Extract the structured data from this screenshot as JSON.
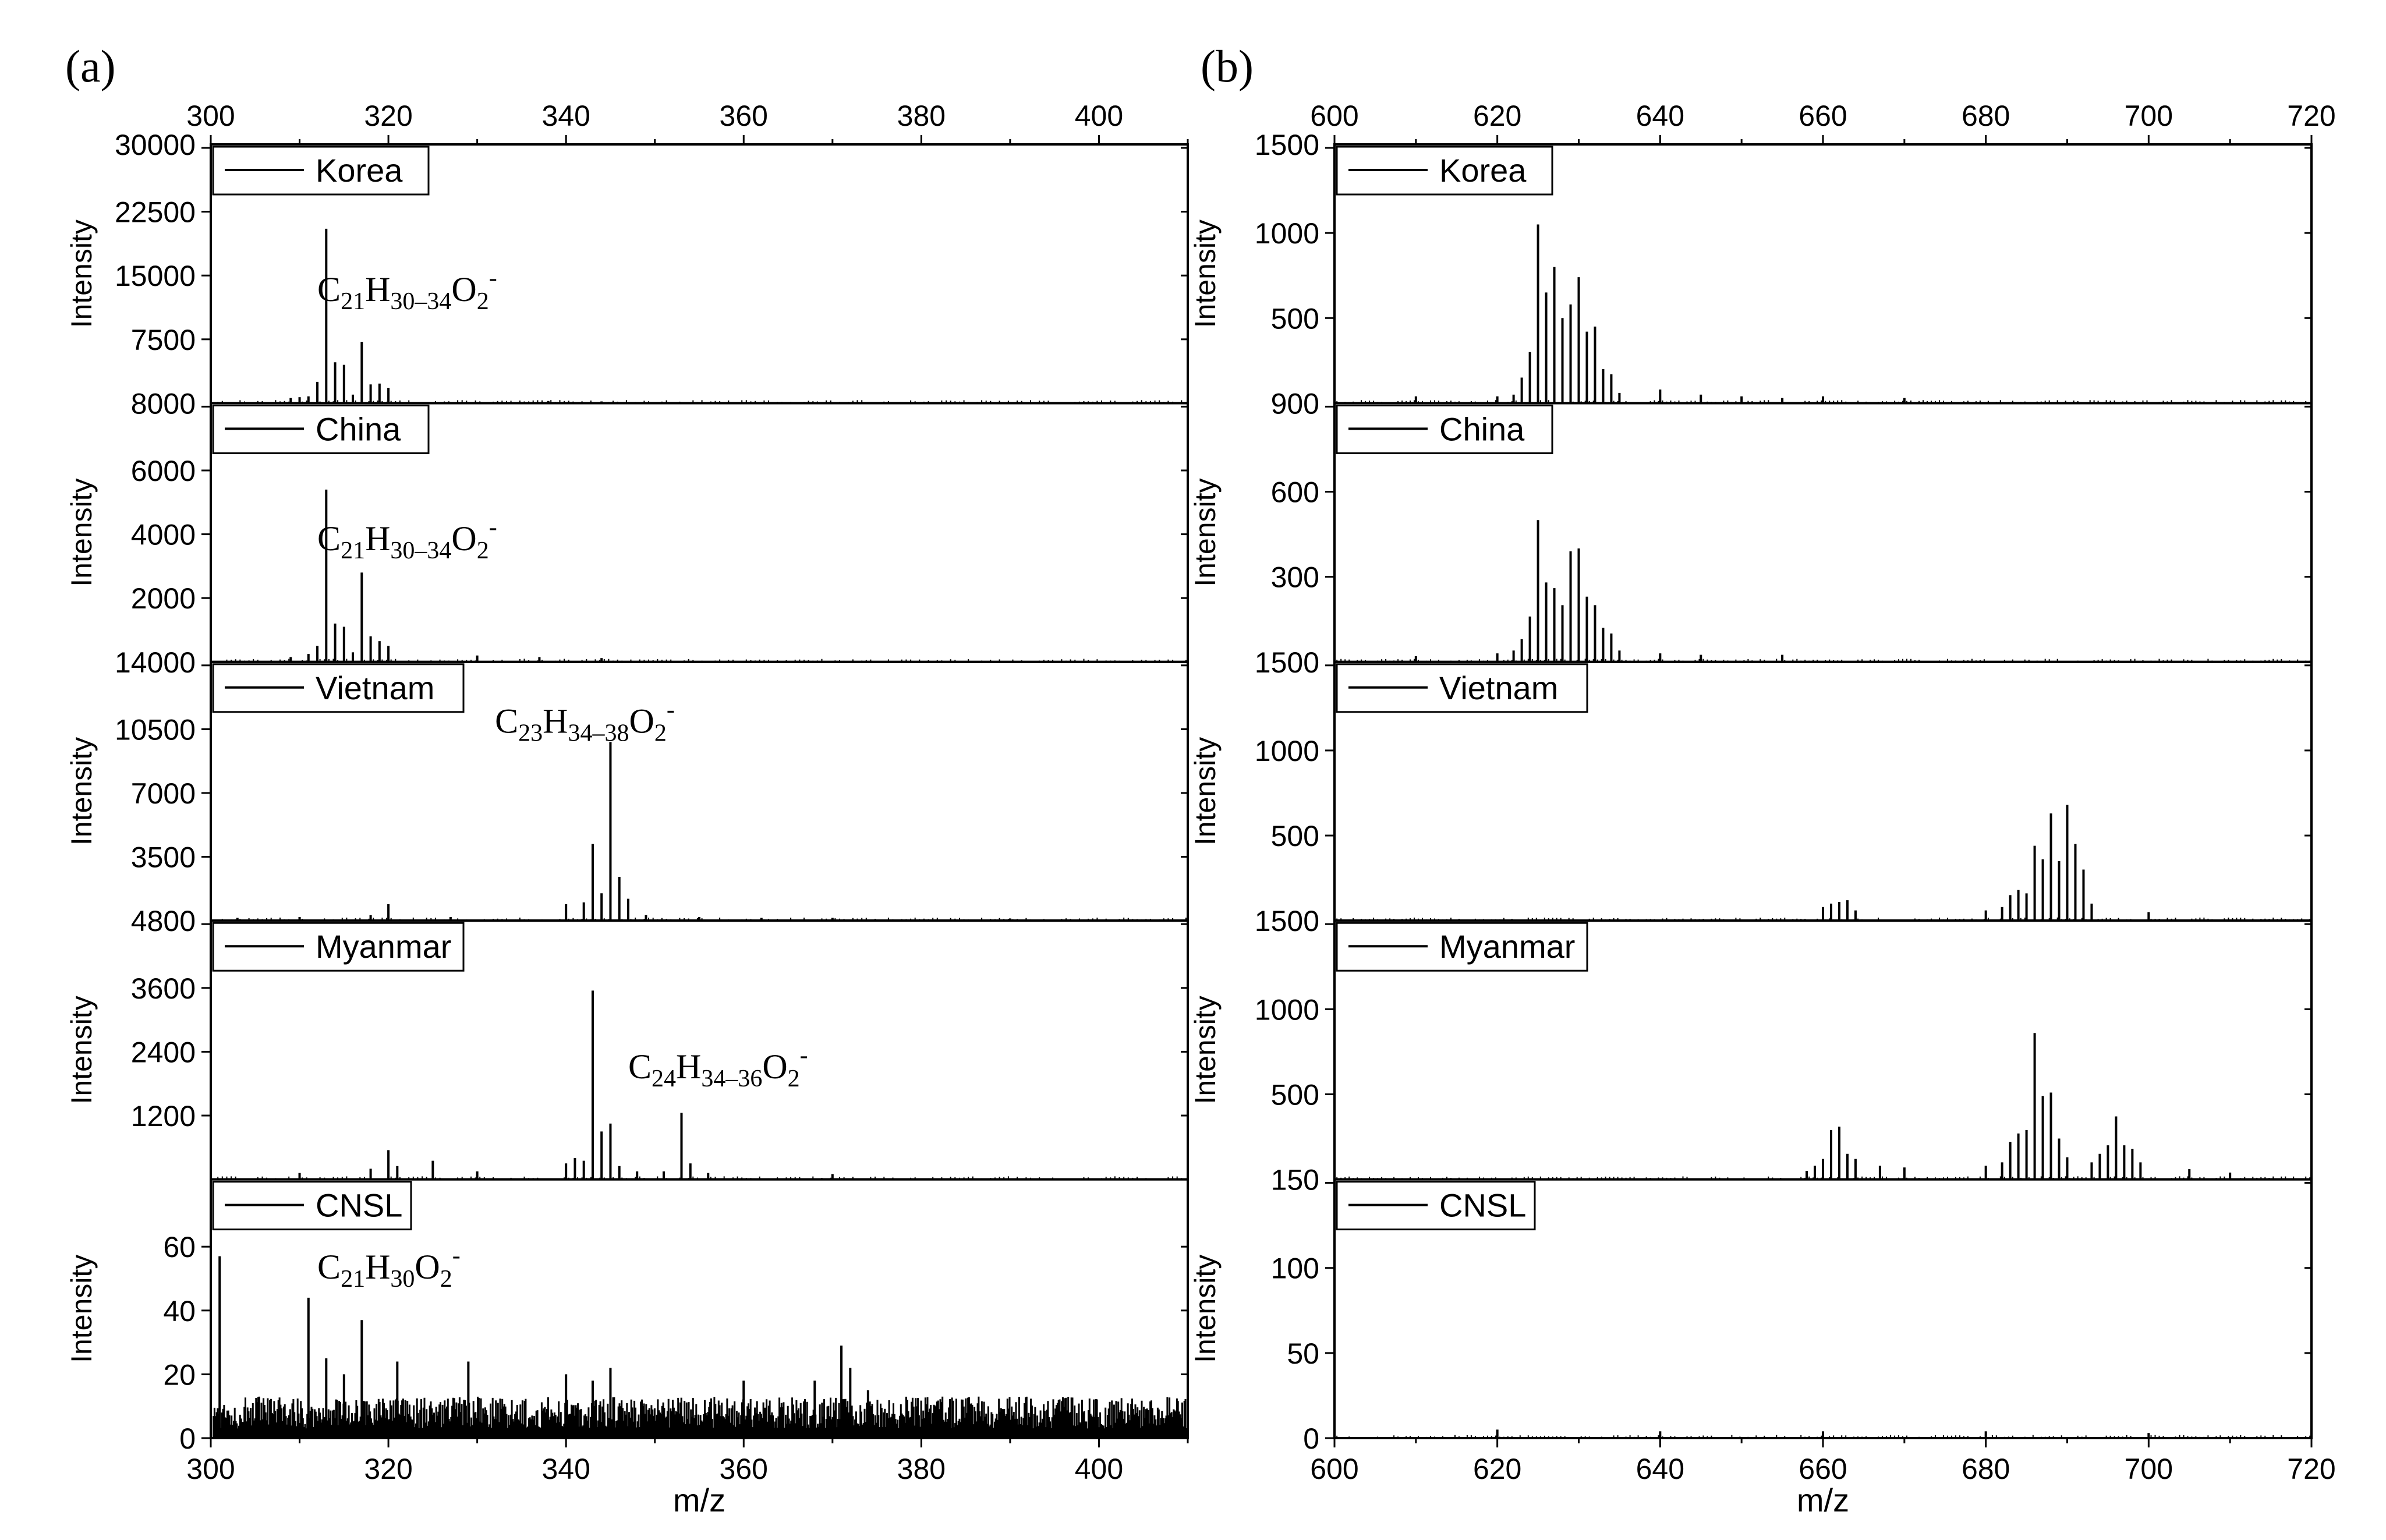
{
  "figure_labels": [
    "(a)",
    "(b)"
  ],
  "common_xlabel": "m/z",
  "chart_data": [
    {
      "type": "line",
      "panel": "(a)",
      "xlabel": "m/z",
      "xlim": [
        300,
        410
      ],
      "xticks": [
        300,
        320,
        340,
        360,
        380,
        400
      ],
      "series": [
        {
          "name": "Korea",
          "ylabel": "Intensity",
          "ylim": [
            0,
            30000
          ],
          "yticks": [
            "7500",
            "15000",
            "22500",
            "30000"
          ],
          "annotation": {
            "formula": [
              "C",
              "21",
              "H",
              "30–34",
              "O",
              "2",
              "-"
            ],
            "x": 312,
            "y": 12000
          },
          "peaks": [
            [
              309,
              600
            ],
            [
              310,
              700
            ],
            [
              311,
              800
            ],
            [
              312,
              2500
            ],
            [
              313,
              20500
            ],
            [
              314,
              4800
            ],
            [
              315,
              4500
            ],
            [
              316,
              1000
            ],
            [
              317,
              7200
            ],
            [
              318,
              2200
            ],
            [
              319,
              2300
            ],
            [
              320,
              1800
            ],
            [
              338,
              250
            ],
            [
              344,
              200
            ]
          ]
        },
        {
          "name": "China",
          "ylabel": "Intensity",
          "ylim": [
            0,
            8000
          ],
          "yticks": [
            "2000",
            "4000",
            "6000",
            "8000"
          ],
          "annotation": {
            "formula": [
              "C",
              "21",
              "H",
              "30–34",
              "O",
              "2",
              "-"
            ],
            "x": 312,
            "y": 3500
          },
          "peaks": [
            [
              309,
              150
            ],
            [
              311,
              250
            ],
            [
              312,
              500
            ],
            [
              313,
              5400
            ],
            [
              314,
              1200
            ],
            [
              315,
              1100
            ],
            [
              316,
              300
            ],
            [
              317,
              2800
            ],
            [
              318,
              800
            ],
            [
              319,
              650
            ],
            [
              320,
              500
            ],
            [
              330,
              200
            ],
            [
              337,
              150
            ],
            [
              344,
              120
            ]
          ]
        },
        {
          "name": "Vietnam",
          "ylabel": "Intensity",
          "ylim": [
            0,
            14000
          ],
          "yticks": [
            "3500",
            "7000",
            "10500",
            "14000"
          ],
          "annotation": {
            "formula": [
              "C",
              "23",
              "H",
              "34–38",
              "O",
              "2",
              "-"
            ],
            "x": 332,
            "y": 10300
          },
          "peaks": [
            [
              303,
              150
            ],
            [
              310,
              200
            ],
            [
              318,
              300
            ],
            [
              320,
              900
            ],
            [
              327,
              200
            ],
            [
              340,
              900
            ],
            [
              342,
              1000
            ],
            [
              343,
              4200
            ],
            [
              344,
              1500
            ],
            [
              345,
              9800
            ],
            [
              346,
              2400
            ],
            [
              347,
              1200
            ],
            [
              349,
              300
            ],
            [
              355,
              200
            ],
            [
              362,
              150
            ],
            [
              370,
              150
            ],
            [
              390,
              120
            ]
          ]
        },
        {
          "name": "Myanmar",
          "ylabel": "Intensity",
          "ylim": [
            0,
            4800
          ],
          "yticks": [
            "1200",
            "2400",
            "3600",
            "4800"
          ],
          "annotation": {
            "formula": [
              "C",
              "24",
              "H",
              "34–36",
              "O",
              "2",
              "-"
            ],
            "x": 347,
            "y": 1900
          },
          "peaks": [
            [
              310,
              120
            ],
            [
              318,
              200
            ],
            [
              320,
              550
            ],
            [
              321,
              250
            ],
            [
              325,
              350
            ],
            [
              330,
              150
            ],
            [
              340,
              300
            ],
            [
              341,
              400
            ],
            [
              342,
              350
            ],
            [
              343,
              3550
            ],
            [
              344,
              900
            ],
            [
              345,
              1050
            ],
            [
              346,
              250
            ],
            [
              348,
              150
            ],
            [
              351,
              150
            ],
            [
              353,
              1250
            ],
            [
              354,
              300
            ],
            [
              356,
              120
            ],
            [
              370,
              100
            ]
          ]
        },
        {
          "name": "CNSL",
          "ylabel": "Intensity",
          "ylim": [
            0,
            80
          ],
          "yticks": [
            "0",
            "20",
            "40",
            "60"
          ],
          "annotation": {
            "formula": [
              "C",
              "21",
              "H",
              "30",
              "O",
              "2",
              "-"
            ],
            "x": 312,
            "y": 50
          },
          "peaks": [
            [
              301,
              57
            ],
            [
              311,
              44
            ],
            [
              313,
              25
            ],
            [
              315,
              20
            ],
            [
              317,
              37
            ],
            [
              321,
              24
            ],
            [
              329,
              24
            ],
            [
              340,
              20
            ],
            [
              343,
              18
            ],
            [
              345,
              22
            ],
            [
              360,
              18
            ],
            [
              368,
              18
            ],
            [
              371,
              29
            ],
            [
              372,
              22
            ],
            [
              374,
              15
            ]
          ]
        }
      ]
    },
    {
      "type": "line",
      "panel": "(b)",
      "xlabel": "m/z",
      "xlim": [
        600,
        720
      ],
      "xticks": [
        600,
        620,
        640,
        660,
        680,
        700,
        720
      ],
      "series": [
        {
          "name": "Korea",
          "ylabel": "Intensity",
          "ylim": [
            0,
            1500
          ],
          "yticks": [
            "500",
            "1000",
            "1500"
          ],
          "peaks": [
            [
              610,
              40
            ],
            [
              620,
              40
            ],
            [
              622,
              50
            ],
            [
              623,
              150
            ],
            [
              624,
              300
            ],
            [
              625,
              1050
            ],
            [
              626,
              650
            ],
            [
              627,
              800
            ],
            [
              628,
              500
            ],
            [
              629,
              580
            ],
            [
              630,
              740
            ],
            [
              631,
              420
            ],
            [
              632,
              450
            ],
            [
              633,
              200
            ],
            [
              634,
              170
            ],
            [
              635,
              60
            ],
            [
              640,
              80
            ],
            [
              645,
              50
            ],
            [
              650,
              40
            ],
            [
              655,
              30
            ],
            [
              660,
              40
            ],
            [
              670,
              30
            ]
          ]
        },
        {
          "name": "China",
          "ylabel": "Intensity",
          "ylim": [
            0,
            900
          ],
          "yticks": [
            "300",
            "600",
            "900"
          ],
          "peaks": [
            [
              610,
              20
            ],
            [
              620,
              30
            ],
            [
              622,
              40
            ],
            [
              623,
              80
            ],
            [
              624,
              160
            ],
            [
              625,
              500
            ],
            [
              626,
              280
            ],
            [
              627,
              260
            ],
            [
              628,
              200
            ],
            [
              629,
              390
            ],
            [
              630,
              400
            ],
            [
              631,
              230
            ],
            [
              632,
              200
            ],
            [
              633,
              120
            ],
            [
              634,
              100
            ],
            [
              635,
              40
            ],
            [
              640,
              30
            ],
            [
              645,
              25
            ],
            [
              655,
              25
            ]
          ]
        },
        {
          "name": "Vietnam",
          "ylabel": "Intensity",
          "ylim": [
            0,
            1500
          ],
          "yticks": [
            "500",
            "1000",
            "1500"
          ],
          "peaks": [
            [
              660,
              80
            ],
            [
              661,
              100
            ],
            [
              662,
              110
            ],
            [
              663,
              120
            ],
            [
              664,
              60
            ],
            [
              680,
              60
            ],
            [
              682,
              80
            ],
            [
              683,
              150
            ],
            [
              684,
              180
            ],
            [
              685,
              160
            ],
            [
              686,
              440
            ],
            [
              687,
              360
            ],
            [
              688,
              630
            ],
            [
              689,
              350
            ],
            [
              690,
              680
            ],
            [
              691,
              450
            ],
            [
              692,
              300
            ],
            [
              693,
              100
            ],
            [
              700,
              50
            ]
          ]
        },
        {
          "name": "Myanmar",
          "ylabel": "Intensity",
          "ylim": [
            0,
            1500
          ],
          "yticks": [
            "500",
            "1000",
            "1500"
          ],
          "peaks": [
            [
              658,
              50
            ],
            [
              659,
              80
            ],
            [
              660,
              120
            ],
            [
              661,
              290
            ],
            [
              662,
              310
            ],
            [
              663,
              150
            ],
            [
              664,
              120
            ],
            [
              667,
              80
            ],
            [
              670,
              70
            ],
            [
              680,
              80
            ],
            [
              682,
              100
            ],
            [
              683,
              220
            ],
            [
              684,
              270
            ],
            [
              685,
              290
            ],
            [
              686,
              860
            ],
            [
              687,
              490
            ],
            [
              688,
              510
            ],
            [
              689,
              240
            ],
            [
              690,
              130
            ],
            [
              693,
              100
            ],
            [
              694,
              150
            ],
            [
              695,
              200
            ],
            [
              696,
              370
            ],
            [
              697,
              200
            ],
            [
              698,
              180
            ],
            [
              699,
              100
            ],
            [
              705,
              60
            ],
            [
              710,
              40
            ]
          ]
        },
        {
          "name": "CNSL",
          "ylabel": "Intensity",
          "ylim": [
            0,
            150
          ],
          "yticks": [
            "0",
            "50",
            "100",
            "150"
          ],
          "peaks": [
            [
              620,
              5
            ],
            [
              640,
              4
            ],
            [
              660,
              4
            ],
            [
              680,
              4
            ],
            [
              700,
              3
            ]
          ]
        }
      ]
    }
  ]
}
